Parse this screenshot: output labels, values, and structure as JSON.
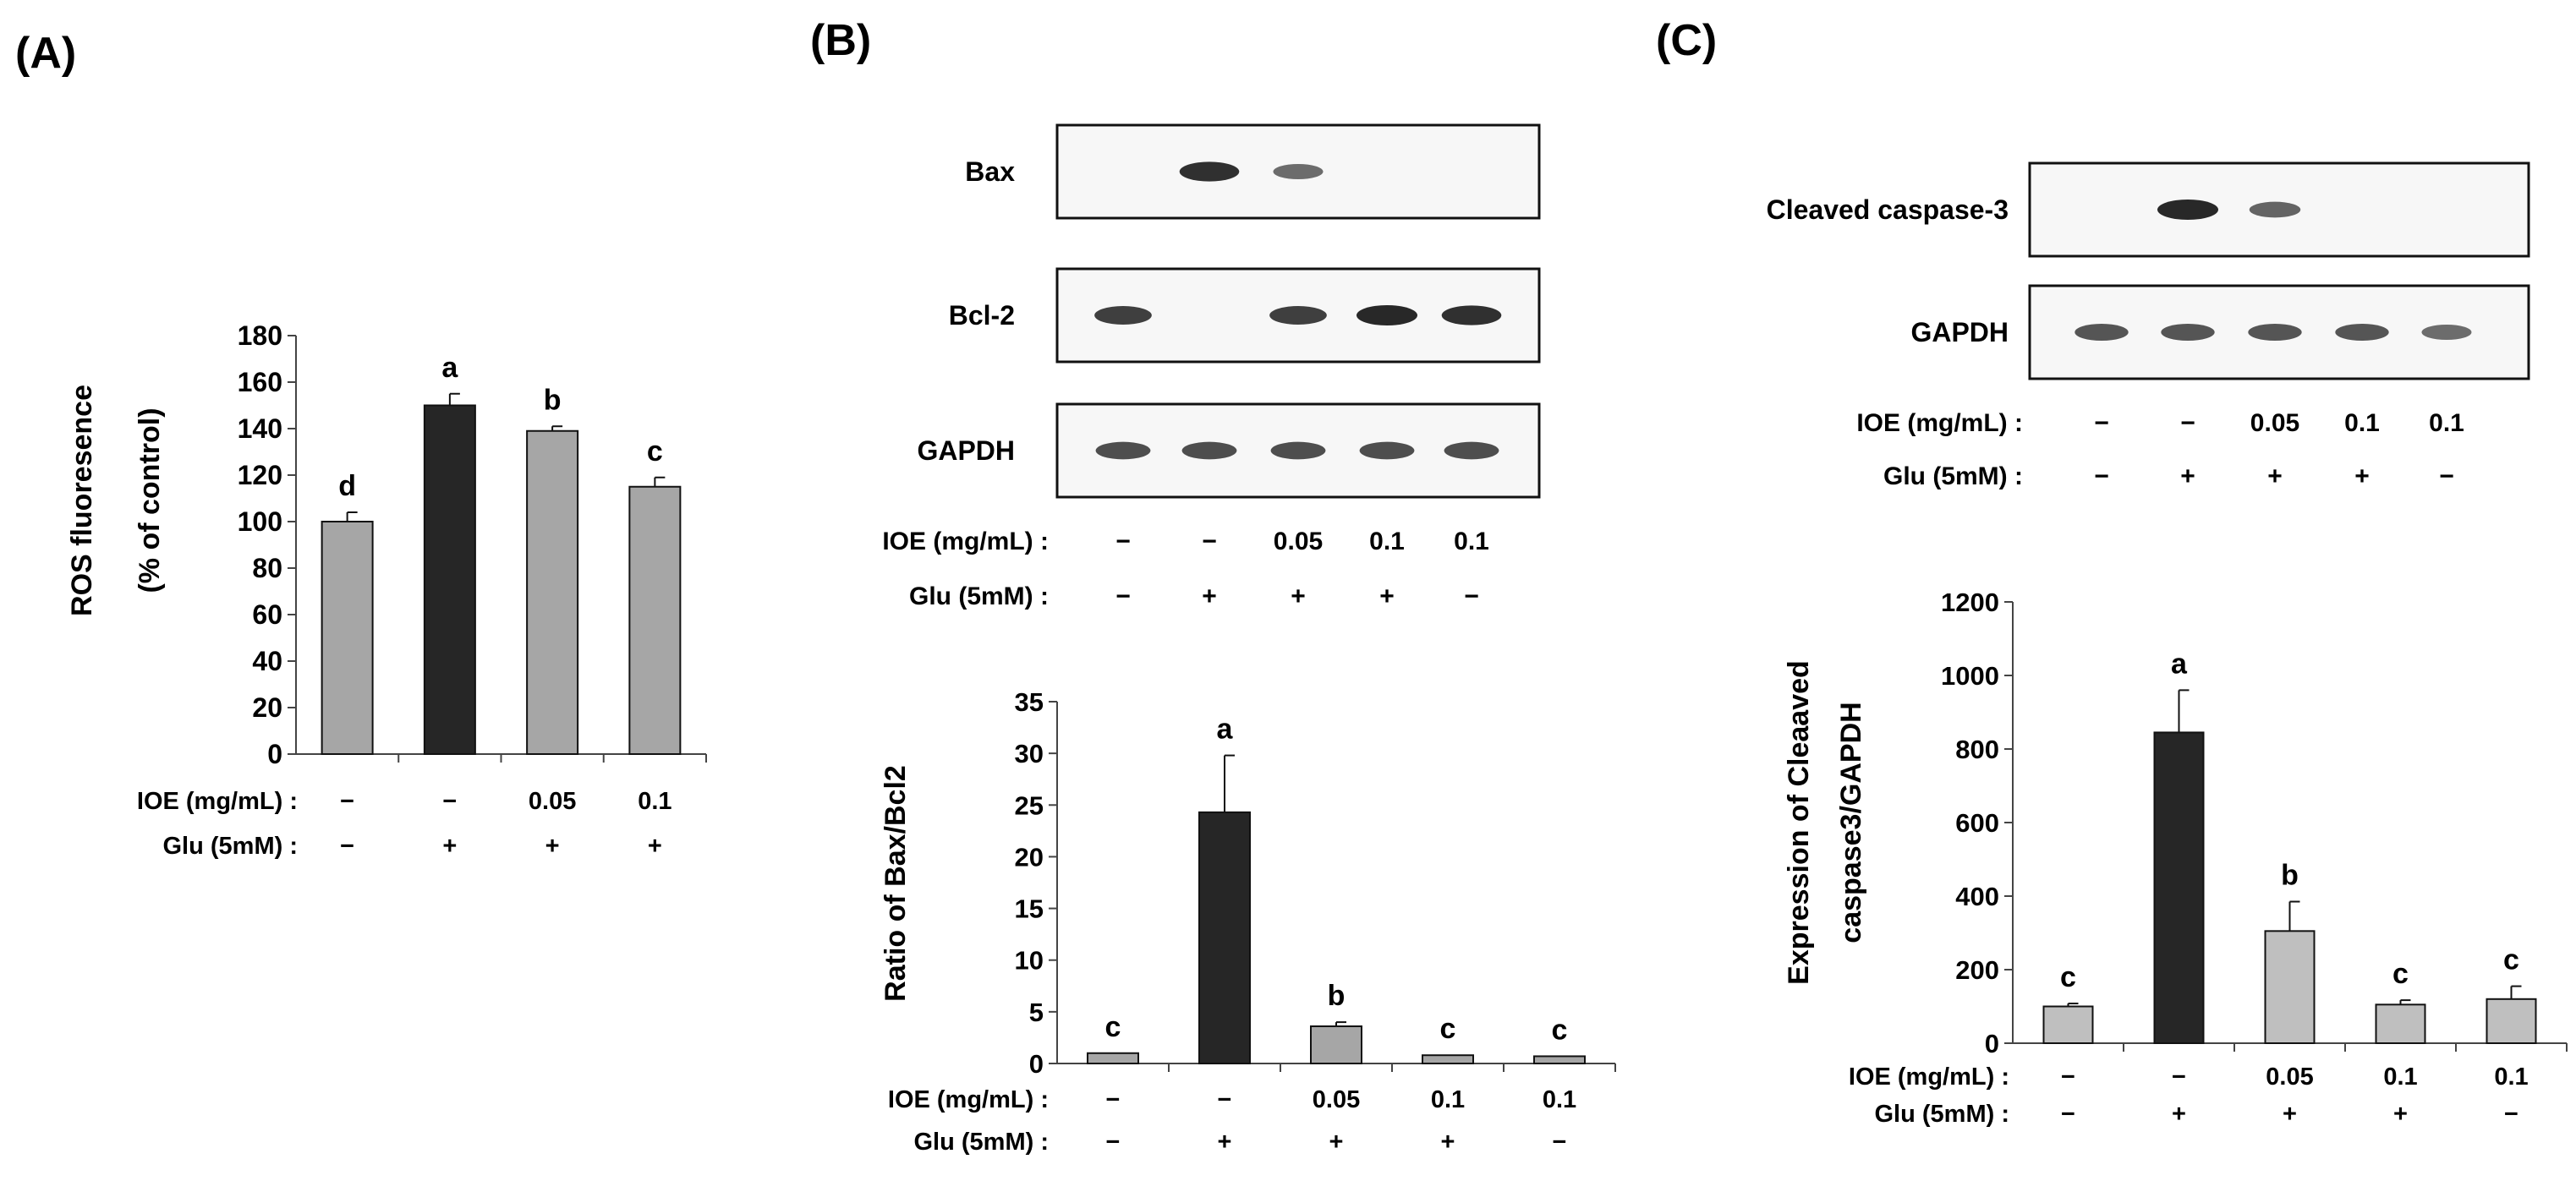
{
  "panels": [
    {
      "label": "(A)",
      "blots": [],
      "blot_conditions": null,
      "chart_data": {
        "type": "bar",
        "ylabel": [
          "ROS fluoresence",
          "(% of control)"
        ],
        "ylim": [
          0,
          180
        ],
        "yticks": [
          0,
          20,
          40,
          60,
          80,
          100,
          120,
          140,
          160,
          180
        ],
        "values": [
          100,
          150,
          139,
          115
        ],
        "errors": [
          4,
          5,
          2,
          4
        ],
        "letters": [
          "d",
          "a",
          "b",
          "c"
        ],
        "bar_colors": [
          "#a6a6a6",
          "#262626",
          "#a6a6a6",
          "#a6a6a6"
        ],
        "conditions": {
          "ioe_label": "IOE (mg/mL) :",
          "ioe": [
            "−",
            "−",
            "0.05",
            "0.1"
          ],
          "glu_label": "Glu (5mM) :",
          "glu": [
            "−",
            "+",
            "+",
            "+"
          ]
        }
      }
    },
    {
      "label": "(B)",
      "blots": [
        {
          "label": "Bax",
          "bands": [
            0,
            0.95,
            0.55,
            0,
            0
          ]
        },
        {
          "label": "Bcl-2",
          "bands": [
            0.85,
            0,
            0.85,
            1,
            0.95
          ]
        },
        {
          "label": "GAPDH",
          "bands": [
            0.75,
            0.75,
            0.75,
            0.75,
            0.75
          ]
        }
      ],
      "blot_conditions": {
        "ioe_label": "IOE (mg/mL) :",
        "ioe": [
          "−",
          "−",
          "0.05",
          "0.1",
          "0.1"
        ],
        "glu_label": "Glu (5mM) :",
        "glu": [
          "−",
          "+",
          "+",
          "+",
          "−"
        ]
      },
      "chart_data": {
        "type": "bar",
        "ylabel": [
          "Ratio of Bax/Bcl2"
        ],
        "ylim": [
          0,
          35
        ],
        "yticks": [
          0,
          5,
          10,
          15,
          20,
          25,
          30,
          35
        ],
        "values": [
          1,
          24.3,
          3.6,
          0.8,
          0.7
        ],
        "errors": [
          0,
          5.5,
          0.4,
          0,
          0
        ],
        "letters": [
          "c",
          "a",
          "b",
          "c",
          "c"
        ],
        "bar_colors": [
          "#a6a6a6",
          "#262626",
          "#a6a6a6",
          "#a6a6a6",
          "#a6a6a6"
        ],
        "conditions": {
          "ioe_label": "IOE (mg/mL) :",
          "ioe": [
            "−",
            "−",
            "0.05",
            "0.1",
            "0.1"
          ],
          "glu_label": "Glu (5mM) :",
          "glu": [
            "−",
            "+",
            "+",
            "+",
            "−"
          ]
        }
      }
    },
    {
      "label": "(C)",
      "blots": [
        {
          "label": "Cleaved caspase-3",
          "bands": [
            0,
            1,
            0.6,
            0,
            0
          ]
        },
        {
          "label": "GAPDH",
          "bands": [
            0.7,
            0.7,
            0.7,
            0.7,
            0.55
          ]
        }
      ],
      "blot_conditions": {
        "ioe_label": "IOE (mg/mL) :",
        "ioe": [
          "−",
          "−",
          "0.05",
          "0.1",
          "0.1"
        ],
        "glu_label": "Glu (5mM) :",
        "glu": [
          "−",
          "+",
          "+",
          "+",
          "−"
        ]
      },
      "chart_data": {
        "type": "bar",
        "ylabel": [
          "Expression of Cleaaved",
          "caspase3/GAPDH"
        ],
        "ylim": [
          0,
          1200
        ],
        "yticks": [
          0,
          200,
          400,
          600,
          800,
          1000,
          1200
        ],
        "values": [
          100,
          845,
          305,
          105,
          120
        ],
        "errors": [
          8,
          115,
          80,
          12,
          35
        ],
        "letters": [
          "c",
          "a",
          "b",
          "c",
          "c"
        ],
        "bar_colors": [
          "#bfbfbf",
          "#262626",
          "#bfbfbf",
          "#bfbfbf",
          "#bfbfbf"
        ],
        "conditions": {
          "ioe_label": "IOE (mg/mL) :",
          "ioe": [
            "−",
            "−",
            "0.05",
            "0.1",
            "0.1"
          ],
          "glu_label": "Glu (5mM) :",
          "glu": [
            "−",
            "+",
            "+",
            "+",
            "−"
          ]
        }
      }
    }
  ]
}
